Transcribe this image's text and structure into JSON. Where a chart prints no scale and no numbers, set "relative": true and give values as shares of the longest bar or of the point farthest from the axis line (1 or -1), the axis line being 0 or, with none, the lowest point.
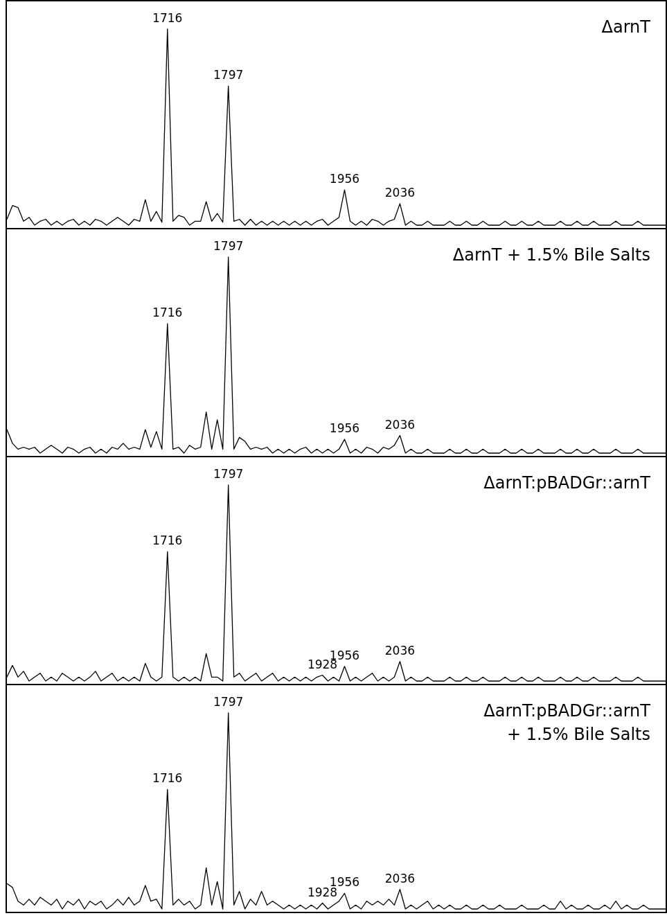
{
  "chart_data": [
    {
      "type": "line",
      "title": "ΔarnT",
      "relative": true,
      "tick_labels": false,
      "grid": false,
      "legend": false,
      "marker": "none",
      "line_style": "solid",
      "color": "#000000",
      "categories": [
        null,
        null,
        null,
        null,
        null,
        null,
        null,
        null,
        null,
        null,
        null,
        null,
        null,
        null,
        null,
        null,
        null,
        null,
        null,
        null,
        null,
        null,
        null,
        null,
        null,
        null,
        null,
        null,
        null,
        null,
        null,
        null,
        null,
        null,
        null,
        null,
        null,
        null,
        null,
        null,
        null,
        null,
        null,
        null,
        null,
        null,
        null,
        null,
        null,
        null,
        null,
        null,
        null,
        null,
        null,
        null,
        null,
        null,
        null,
        null,
        null,
        null,
        null,
        null,
        null,
        null,
        null,
        null,
        null,
        null,
        null,
        null,
        null,
        null,
        null,
        null,
        null,
        null,
        null,
        null,
        null,
        null,
        null,
        null,
        null,
        null,
        null,
        null,
        null,
        null,
        null,
        null,
        null,
        null,
        null,
        null,
        null,
        null,
        null,
        null,
        null,
        null,
        null,
        null,
        null,
        null,
        null,
        null,
        null,
        null,
        null,
        null,
        null,
        null,
        null,
        null,
        null,
        null,
        null,
        null
      ],
      "values": [
        0.03,
        0.1,
        0.09,
        0.02,
        0.04,
        0,
        0.02,
        0.03,
        0,
        0.02,
        0,
        0.02,
        0.03,
        0,
        0.02,
        0,
        0.03,
        0.02,
        0,
        0.02,
        0.04,
        0.02,
        0,
        0.03,
        0.02,
        0.13,
        0.02,
        0.07,
        0.015,
        1,
        0.02,
        0.05,
        0.04,
        0,
        0.02,
        0.02,
        0.12,
        0.02,
        0.06,
        0.015,
        0.71,
        0.02,
        0.03,
        0,
        0.03,
        0,
        0.02,
        0,
        0.02,
        0,
        0.02,
        0,
        0.02,
        0,
        0.02,
        0,
        0.02,
        0.03,
        0,
        0.02,
        0.04,
        0.18,
        0.02,
        0,
        0.02,
        0,
        0.03,
        0.02,
        0,
        0.02,
        0.03,
        0.11,
        0,
        0.02,
        0,
        0,
        0.02,
        0,
        0,
        0,
        0.02,
        0,
        0,
        0.02,
        0,
        0,
        0.02,
        0,
        0,
        0,
        0.02,
        0,
        0,
        0.02,
        0,
        0,
        0.02,
        0,
        0,
        0,
        0.02,
        0,
        0,
        0.02,
        0,
        0,
        0.02,
        0,
        0,
        0,
        0.02,
        0,
        0,
        0,
        0.02,
        0,
        0,
        0,
        0,
        0
      ],
      "annotations": [
        {
          "text": "1716",
          "y": 1
        },
        {
          "text": "1797",
          "y": 0.71
        },
        {
          "text": "1956",
          "y": 0.18
        },
        {
          "text": "2036",
          "y": 0.11
        }
      ]
    },
    {
      "type": "line",
      "title": "ΔarnT + 1.5% Bile Salts",
      "relative": true,
      "tick_labels": false,
      "grid": false,
      "legend": false,
      "marker": "none",
      "line_style": "solid",
      "color": "#000000",
      "categories": [
        null,
        null,
        null,
        null,
        null,
        null,
        null,
        null,
        null,
        null,
        null,
        null,
        null,
        null,
        null,
        null,
        null,
        null,
        null,
        null,
        null,
        null,
        null,
        null,
        null,
        null,
        null,
        null,
        null,
        null,
        null,
        null,
        null,
        null,
        null,
        null,
        null,
        null,
        null,
        null,
        null,
        null,
        null,
        null,
        null,
        null,
        null,
        null,
        null,
        null,
        null,
        null,
        null,
        null,
        null,
        null,
        null,
        null,
        null,
        null,
        null,
        null,
        null,
        null,
        null,
        null,
        null,
        null,
        null,
        null,
        null,
        null,
        null,
        null,
        null,
        null,
        null,
        null,
        null,
        null,
        null,
        null,
        null,
        null,
        null,
        null,
        null,
        null,
        null,
        null,
        null,
        null,
        null,
        null,
        null,
        null,
        null,
        null,
        null,
        null,
        null,
        null,
        null,
        null,
        null,
        null,
        null,
        null,
        null,
        null,
        null,
        null,
        null,
        null,
        null,
        null,
        null,
        null,
        null,
        null
      ],
      "values": [
        0.12,
        0.05,
        0.02,
        0.03,
        0.02,
        0.03,
        0,
        0.02,
        0.04,
        0.02,
        0,
        0.03,
        0.02,
        0,
        0.02,
        0.03,
        0,
        0.02,
        0,
        0.03,
        0.02,
        0.05,
        0.02,
        0.03,
        0.02,
        0.12,
        0.03,
        0.11,
        0.02,
        0.66,
        0.02,
        0.03,
        0,
        0.04,
        0.02,
        0.03,
        0.21,
        0.02,
        0.17,
        0.02,
        1,
        0.02,
        0.08,
        0.06,
        0.02,
        0.03,
        0.02,
        0.03,
        0,
        0.02,
        0,
        0.02,
        0,
        0.02,
        0.03,
        0,
        0.02,
        0,
        0.02,
        0,
        0.02,
        0.07,
        0,
        0.02,
        0,
        0.03,
        0.02,
        0,
        0.03,
        0.02,
        0.04,
        0.09,
        0,
        0.02,
        0,
        0,
        0.02,
        0,
        0,
        0,
        0.02,
        0,
        0,
        0.02,
        0,
        0,
        0.02,
        0,
        0,
        0,
        0.02,
        0,
        0,
        0.02,
        0,
        0,
        0.02,
        0,
        0,
        0,
        0.02,
        0,
        0,
        0.02,
        0,
        0,
        0.02,
        0,
        0,
        0,
        0.02,
        0,
        0,
        0,
        0.02,
        0,
        0,
        0,
        0,
        0
      ],
      "annotations": [
        {
          "text": "1716",
          "y": 0.66
        },
        {
          "text": "1797",
          "y": 1
        },
        {
          "text": "1956",
          "y": 0.07
        },
        {
          "text": "2036",
          "y": 0.09
        }
      ]
    },
    {
      "type": "line",
      "title": "ΔarnT:pBADGr::arnT",
      "relative": true,
      "tick_labels": false,
      "grid": false,
      "legend": false,
      "marker": "none",
      "line_style": "solid",
      "color": "#000000",
      "categories": [
        null,
        null,
        null,
        null,
        null,
        null,
        null,
        null,
        null,
        null,
        null,
        null,
        null,
        null,
        null,
        null,
        null,
        null,
        null,
        null,
        null,
        null,
        null,
        null,
        null,
        null,
        null,
        null,
        null,
        null,
        null,
        null,
        null,
        null,
        null,
        null,
        null,
        null,
        null,
        null,
        null,
        null,
        null,
        null,
        null,
        null,
        null,
        null,
        null,
        null,
        null,
        null,
        null,
        null,
        null,
        null,
        null,
        null,
        null,
        null,
        null,
        null,
        null,
        null,
        null,
        null,
        null,
        null,
        null,
        null,
        null,
        null,
        null,
        null,
        null,
        null,
        null,
        null,
        null,
        null,
        null,
        null,
        null,
        null,
        null,
        null,
        null,
        null,
        null,
        null,
        null,
        null,
        null,
        null,
        null,
        null,
        null,
        null,
        null,
        null,
        null,
        null,
        null,
        null,
        null,
        null,
        null,
        null,
        null,
        null,
        null,
        null,
        null,
        null,
        null,
        null,
        null,
        null,
        null,
        null
      ],
      "values": [
        0.02,
        0.08,
        0.02,
        0.05,
        0,
        0.02,
        0.04,
        0,
        0.02,
        0,
        0.04,
        0.02,
        0,
        0.02,
        0,
        0.02,
        0.05,
        0,
        0.02,
        0.04,
        0,
        0.02,
        0,
        0.02,
        0,
        0.09,
        0.02,
        0,
        0.02,
        0.66,
        0.02,
        0,
        0.02,
        0,
        0.02,
        0,
        0.14,
        0.02,
        0.02,
        0,
        1,
        0.02,
        0.04,
        0,
        0.02,
        0.04,
        0,
        0.02,
        0.04,
        0,
        0.02,
        0,
        0.02,
        0,
        0.02,
        0,
        0.02,
        0.03,
        0,
        0.02,
        0,
        0.075,
        0,
        0.02,
        0,
        0.02,
        0.04,
        0,
        0.02,
        0,
        0.02,
        0.1,
        0,
        0.02,
        0,
        0,
        0.02,
        0,
        0,
        0,
        0.02,
        0,
        0,
        0.02,
        0,
        0,
        0.02,
        0,
        0,
        0,
        0.02,
        0,
        0,
        0.02,
        0,
        0,
        0.02,
        0,
        0,
        0,
        0.02,
        0,
        0,
        0.02,
        0,
        0,
        0.02,
        0,
        0,
        0,
        0.02,
        0,
        0,
        0,
        0.02,
        0,
        0,
        0,
        0,
        0
      ],
      "annotations": [
        {
          "text": "1716",
          "y": 0.66
        },
        {
          "text": "1797",
          "y": 1
        },
        {
          "text": "1928",
          "y": 0.03
        },
        {
          "text": "1956",
          "y": 0.075
        },
        {
          "text": "2036",
          "y": 0.1
        }
      ]
    },
    {
      "type": "line",
      "title": "ΔarnT:pBADGr::arnT\n+ 1.5% Bile Salts",
      "relative": true,
      "tick_labels": false,
      "grid": false,
      "legend": false,
      "marker": "none",
      "line_style": "solid",
      "color": "#000000",
      "categories": [
        null,
        null,
        null,
        null,
        null,
        null,
        null,
        null,
        null,
        null,
        null,
        null,
        null,
        null,
        null,
        null,
        null,
        null,
        null,
        null,
        null,
        null,
        null,
        null,
        null,
        null,
        null,
        null,
        null,
        null,
        null,
        null,
        null,
        null,
        null,
        null,
        null,
        null,
        null,
        null,
        null,
        null,
        null,
        null,
        null,
        null,
        null,
        null,
        null,
        null,
        null,
        null,
        null,
        null,
        null,
        null,
        null,
        null,
        null,
        null,
        null,
        null,
        null,
        null,
        null,
        null,
        null,
        null,
        null,
        null,
        null,
        null,
        null,
        null,
        null,
        null,
        null,
        null,
        null,
        null,
        null,
        null,
        null,
        null,
        null,
        null,
        null,
        null,
        null,
        null,
        null,
        null,
        null,
        null,
        null,
        null,
        null,
        null,
        null,
        null,
        null,
        null,
        null,
        null,
        null,
        null,
        null,
        null,
        null,
        null,
        null,
        null,
        null,
        null,
        null,
        null,
        null,
        null,
        null,
        null
      ],
      "values": [
        0.13,
        0.11,
        0.04,
        0.02,
        0.05,
        0.02,
        0.06,
        0.04,
        0.02,
        0.05,
        0,
        0.04,
        0.02,
        0.05,
        0,
        0.04,
        0.02,
        0.04,
        0,
        0.02,
        0.05,
        0.02,
        0.06,
        0.02,
        0.04,
        0.12,
        0.04,
        0.05,
        0,
        0.61,
        0.02,
        0.05,
        0.02,
        0.04,
        0,
        0.02,
        0.21,
        0.02,
        0.14,
        0,
        1,
        0.02,
        0.09,
        0,
        0.05,
        0.02,
        0.09,
        0.02,
        0.04,
        0.02,
        0,
        0.02,
        0,
        0.02,
        0,
        0.02,
        0,
        0.03,
        0,
        0.02,
        0.04,
        0.08,
        0,
        0.02,
        0,
        0.04,
        0.02,
        0.04,
        0.02,
        0.05,
        0.02,
        0.1,
        0,
        0.02,
        0,
        0.02,
        0.04,
        0,
        0.02,
        0,
        0.02,
        0,
        0,
        0.02,
        0,
        0,
        0.02,
        0,
        0,
        0.02,
        0,
        0,
        0,
        0.02,
        0,
        0,
        0,
        0.02,
        0,
        0,
        0.04,
        0,
        0.02,
        0,
        0,
        0.02,
        0,
        0,
        0.02,
        0,
        0.04,
        0,
        0.02,
        0,
        0,
        0.02,
        0,
        0,
        0,
        0
      ],
      "annotations": [
        {
          "text": "1716",
          "y": 0.61
        },
        {
          "text": "1797",
          "y": 1
        },
        {
          "text": "1928",
          "y": 0.03
        },
        {
          "text": "1956",
          "y": 0.08
        },
        {
          "text": "2036",
          "y": 0.1
        }
      ]
    }
  ]
}
